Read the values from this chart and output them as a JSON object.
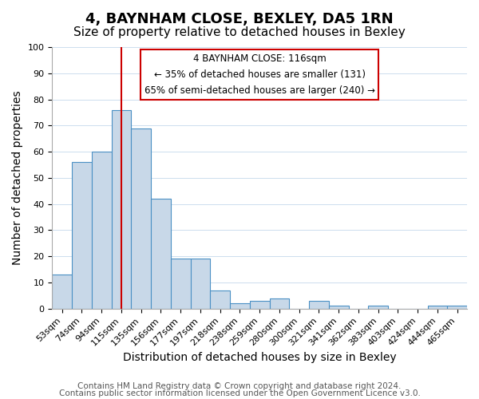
{
  "title": "4, BAYNHAM CLOSE, BEXLEY, DA5 1RN",
  "subtitle": "Size of property relative to detached houses in Bexley",
  "xlabel": "Distribution of detached houses by size in Bexley",
  "ylabel": "Number of detached properties",
  "bar_labels": [
    "53sqm",
    "74sqm",
    "94sqm",
    "115sqm",
    "135sqm",
    "156sqm",
    "177sqm",
    "197sqm",
    "218sqm",
    "238sqm",
    "259sqm",
    "280sqm",
    "300sqm",
    "321sqm",
    "341sqm",
    "362sqm",
    "383sqm",
    "403sqm",
    "424sqm",
    "444sqm",
    "465sqm"
  ],
  "bar_values": [
    13,
    56,
    60,
    76,
    69,
    42,
    19,
    19,
    7,
    2,
    3,
    4,
    0,
    3,
    1,
    0,
    1,
    0,
    0,
    1,
    1
  ],
  "bar_color": "#c8d8e8",
  "bar_edge_color": "#4a90c4",
  "vline_x": 3,
  "vline_color": "#cc0000",
  "annotation_lines": [
    "4 BAYNHAM CLOSE: 116sqm",
    "← 35% of detached houses are smaller (131)",
    "65% of semi-detached houses are larger (240) →"
  ],
  "ylim": [
    0,
    100
  ],
  "yticks": [
    0,
    10,
    20,
    30,
    40,
    50,
    60,
    70,
    80,
    90,
    100
  ],
  "footer_line1": "Contains HM Land Registry data © Crown copyright and database right 2024.",
  "footer_line2": "Contains public sector information licensed under the Open Government Licence v3.0.",
  "title_fontsize": 13,
  "subtitle_fontsize": 11,
  "axis_label_fontsize": 10,
  "tick_fontsize": 8,
  "footer_fontsize": 7.5
}
